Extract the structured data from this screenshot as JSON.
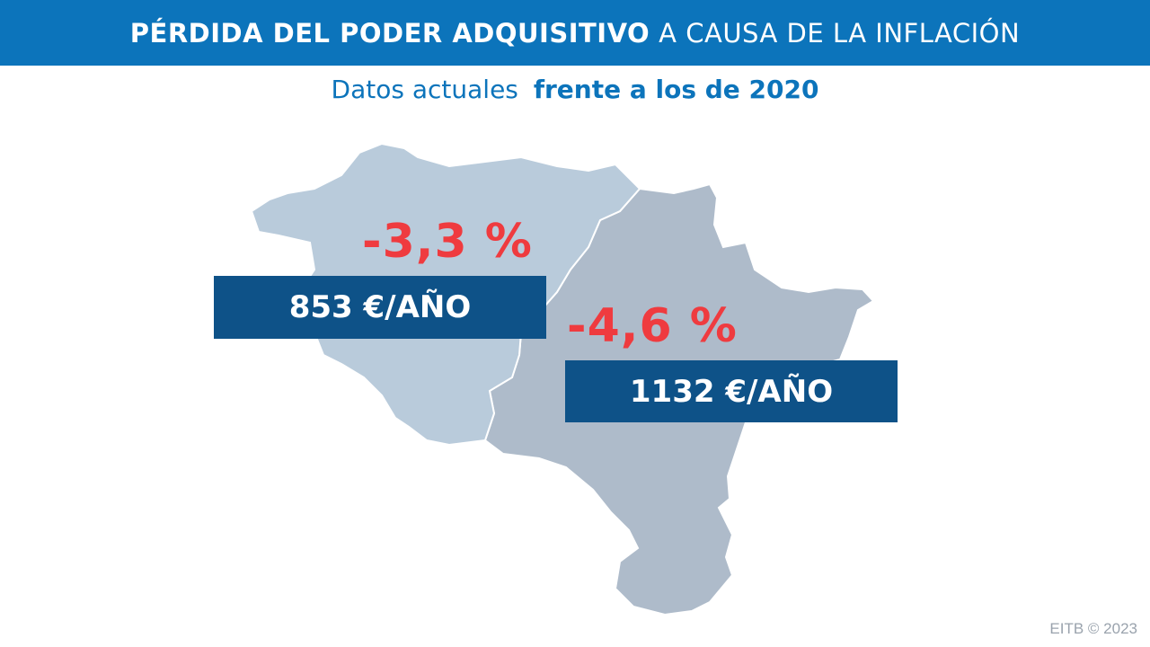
{
  "header": {
    "title_bold": "PÉRDIDA DEL PODER ADQUISITIVO",
    "title_light": "A CAUSA DE LA INFLACIÓN"
  },
  "subheader": {
    "text_light": "Datos actuales",
    "text_bold": "frente a los de 2020"
  },
  "regions": [
    {
      "percent": "-3,3 %",
      "amount": "853 €/AÑO"
    },
    {
      "percent": "-4,6 %",
      "amount": "1132 €/AÑO"
    }
  ],
  "footer": {
    "credit": "EITB © 2023"
  },
  "colors": {
    "header_bg": "#0c74bb",
    "region_west": "#b9cbdb",
    "region_east": "#aebbca",
    "percent": "#ef3b3f",
    "box_bg": "#0e5288"
  }
}
